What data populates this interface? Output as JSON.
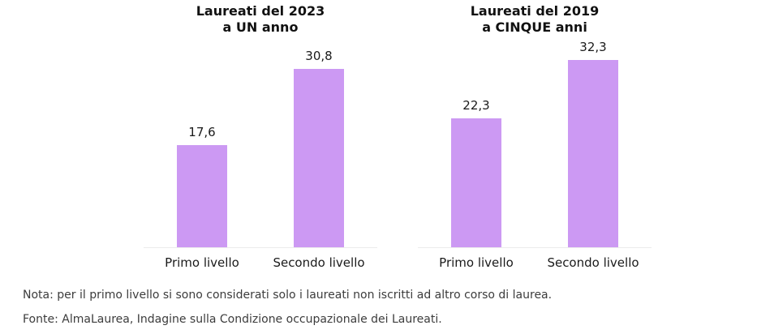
{
  "colors": {
    "bar_fill": "#cc99f3",
    "baseline": "#ececec",
    "title_text": "#111111",
    "label_text": "#1a1a1a",
    "note_text": "#3c3c3c",
    "background": "#ffffff"
  },
  "chart_data": [
    {
      "type": "bar",
      "title": "Laureati del 2023 a UN anno",
      "title_line1": "Laureati del 2023",
      "title_line2": "a UN anno",
      "categories": [
        "Primo livello",
        "Secondo livello"
      ],
      "values": [
        17.6,
        30.8
      ],
      "value_labels": [
        "17,6",
        "30,8"
      ],
      "xlabel": "",
      "ylabel": "",
      "ylim": [
        0,
        36
      ],
      "grid": false,
      "legend": false,
      "bar_color": "#cc99f3"
    },
    {
      "type": "bar",
      "title": "Laureati del 2019 a CINQUE anni",
      "title_line1": "Laureati del 2019",
      "title_line2": "a CINQUE anni",
      "categories": [
        "Primo livello",
        "Secondo livello"
      ],
      "values": [
        22.3,
        32.3
      ],
      "value_labels": [
        "22,3",
        "32,3"
      ],
      "xlabel": "",
      "ylabel": "",
      "ylim": [
        0,
        36
      ],
      "grid": false,
      "legend": false,
      "bar_color": "#cc99f3"
    }
  ],
  "notes": {
    "nota": "Nota: per il primo livello si sono considerati solo i laureati non iscritti ad altro corso di laurea.",
    "fonte": "Fonte: AlmaLaurea, Indagine sulla Condizione occupazionale dei Laureati."
  }
}
